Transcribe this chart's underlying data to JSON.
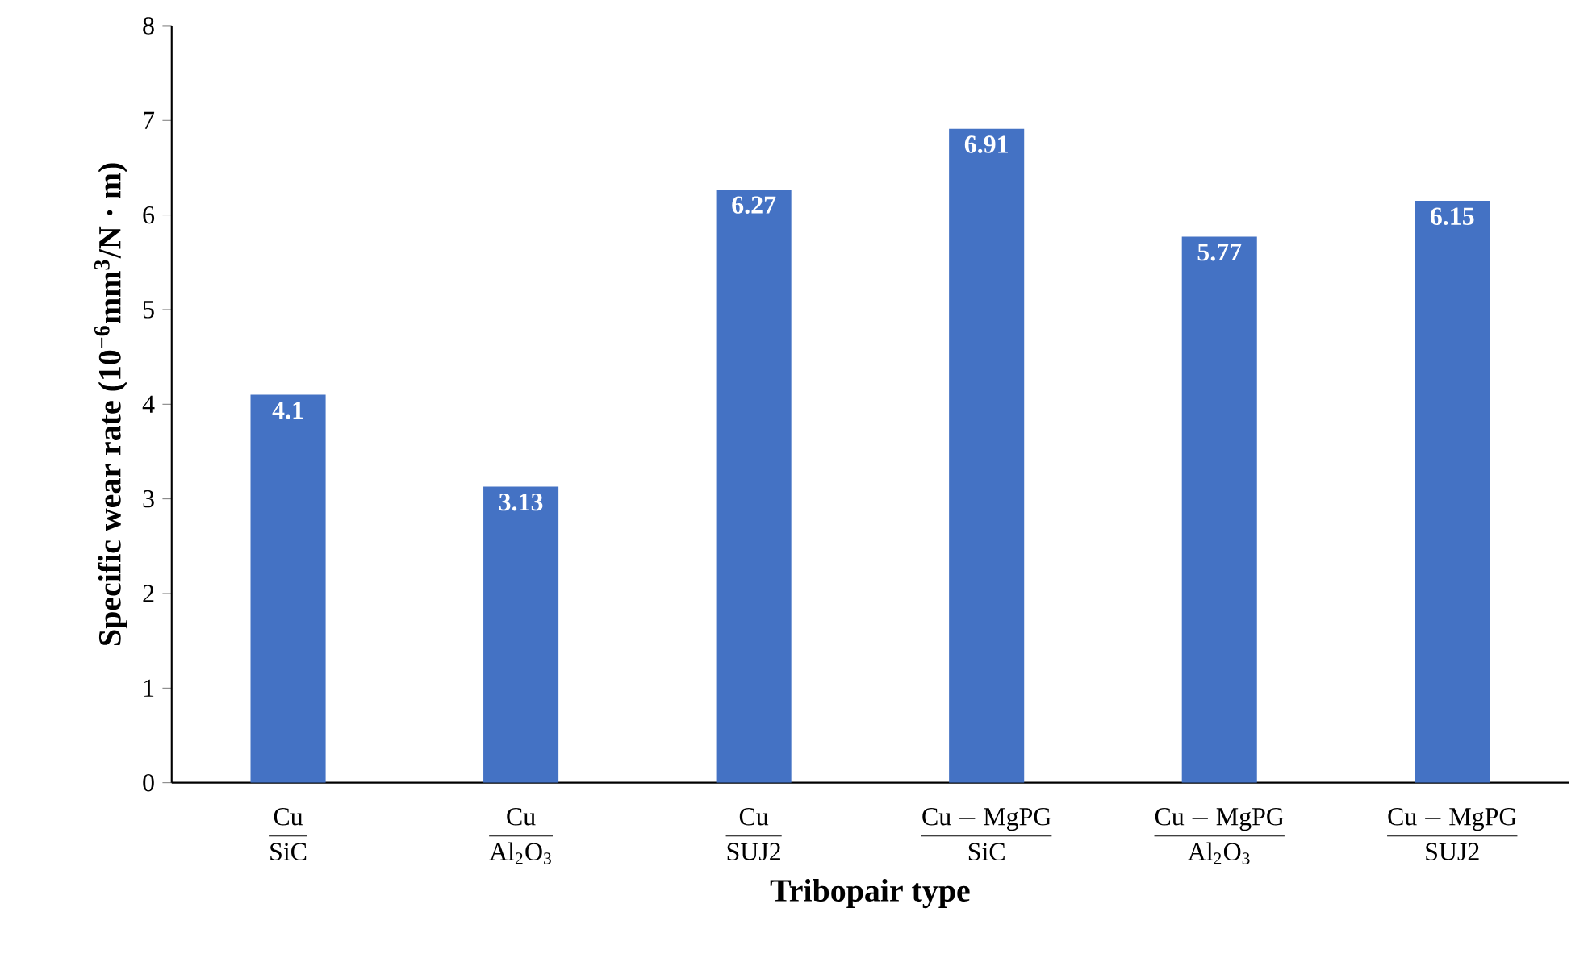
{
  "chart_data": {
    "type": "bar",
    "xlabel": "Tribopair type",
    "ylabel": "Specific wear rate (10$^{−6}$mm$^{3}$/N · m)",
    "categories": [
      "\\frac{\\mathrm{Cu}}{\\mathrm{SiC}}",
      "\\frac{\\mathrm{Cu}}{\\mathrm{Al_2O_3}}",
      "\\frac{\\mathrm{Cu}}{\\mathrm{SUJ2}}",
      "\\frac{\\mathrm{Cu-MgPG}}{\\mathrm{SiC}}",
      "\\frac{\\mathrm{Cu-MgPG}}{\\mathrm{Al_2O_3}}",
      "\\frac{\\mathrm{Cu-MgPG}}{\\mathrm{SUJ2}}"
    ],
    "values": [
      4.1,
      3.13,
      6.27,
      6.91,
      5.77,
      6.15
    ],
    "color": "#4472c4",
    "ylim": [
      0,
      8
    ],
    "yticks": [
      0,
      1,
      2,
      3,
      4,
      5,
      6,
      7,
      8
    ],
    "data_labels": true
  }
}
